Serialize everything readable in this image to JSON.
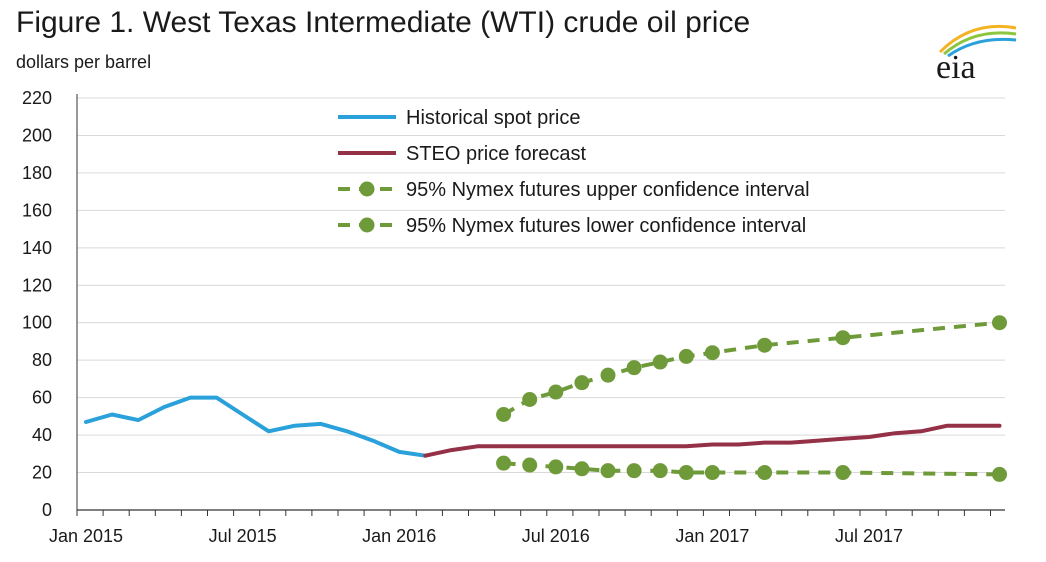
{
  "title": "Figure 1. West Texas Intermediate (WTI) crude oil price",
  "subtitle": "dollars per barrel",
  "logo": {
    "text": "eia",
    "icon": "eia-logo"
  },
  "colors": {
    "historical": "#2aa1db",
    "forecast": "#943146",
    "confidence": "#6f9a3a",
    "grid": "#d9d9d9",
    "axis": "#333333"
  },
  "chart_data": {
    "type": "line",
    "title": "Figure 1. West Texas Intermediate (WTI) crude oil price",
    "ylabel": "dollars per barrel",
    "xlabel": "",
    "ylim": [
      0,
      220
    ],
    "yticks": [
      0,
      20,
      40,
      60,
      80,
      100,
      120,
      140,
      160,
      180,
      200,
      220
    ],
    "xticks": [
      {
        "label": "Jan 2015",
        "month": 0
      },
      {
        "label": "Jul 2015",
        "month": 6
      },
      {
        "label": "Jan 2016",
        "month": 12
      },
      {
        "label": "Jul 2016",
        "month": 18
      },
      {
        "label": "Jan 2017",
        "month": 24
      },
      {
        "label": "Jul 2017",
        "month": 30
      }
    ],
    "xlim": [
      0,
      35
    ],
    "grid": "horizontal",
    "legend_position": "top-center",
    "series": [
      {
        "name": "Historical spot price",
        "style": "solid",
        "x": [
          0,
          1,
          2,
          3,
          4,
          5,
          6,
          7,
          8,
          9,
          10,
          11,
          12,
          13
        ],
        "y": [
          47,
          51,
          48,
          55,
          60,
          60,
          51,
          42,
          45,
          46,
          42,
          37,
          31,
          29
        ]
      },
      {
        "name": "STEO price forecast",
        "style": "solid",
        "x": [
          13,
          14,
          15,
          16,
          17,
          18,
          19,
          20,
          21,
          22,
          23,
          24,
          25,
          26,
          27,
          28,
          29,
          30,
          31,
          32,
          33,
          34,
          35
        ],
        "y": [
          29,
          32,
          34,
          34,
          34,
          34,
          34,
          34,
          34,
          34,
          34,
          35,
          35,
          36,
          36,
          37,
          38,
          39,
          41,
          42,
          45,
          45,
          45
        ]
      },
      {
        "name": "95% Nymex futures upper confidence interval",
        "style": "dashed-markers",
        "x": [
          16,
          17,
          18,
          19,
          20,
          21,
          22,
          23,
          24,
          26,
          29,
          35
        ],
        "y": [
          51,
          59,
          63,
          68,
          72,
          76,
          79,
          82,
          84,
          88,
          92,
          100
        ]
      },
      {
        "name": "95% Nymex futures lower confidence interval",
        "style": "dashed-markers",
        "x": [
          16,
          17,
          18,
          19,
          20,
          21,
          22,
          23,
          24,
          26,
          29,
          35
        ],
        "y": [
          25,
          24,
          23,
          22,
          21,
          21,
          21,
          20,
          20,
          20,
          20,
          19
        ]
      }
    ]
  }
}
